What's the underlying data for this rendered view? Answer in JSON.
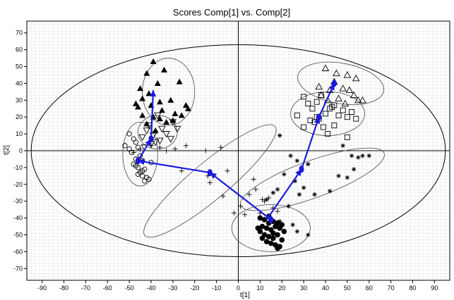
{
  "chart_data": {
    "type": "scatter",
    "title": "Scores Comp[1] vs. Comp[2]",
    "xlabel": "t[1]",
    "ylabel": "t[2]",
    "xlim": [
      -97,
      97
    ],
    "ylim": [
      -77,
      77
    ],
    "x_ticks": [
      -90,
      -80,
      -70,
      -60,
      -50,
      -40,
      -30,
      -20,
      -10,
      0,
      10,
      20,
      30,
      40,
      50,
      60,
      70,
      80,
      90
    ],
    "y_ticks": [
      70,
      60,
      50,
      40,
      30,
      20,
      10,
      0,
      -10,
      -20,
      -30,
      -40,
      -50,
      -60,
      -70
    ],
    "grid": true,
    "legend": "none",
    "colors": {
      "points": "#000000",
      "arrows": "#1a1adc",
      "ellipses": "#444444",
      "grid": "#d6d6d6"
    },
    "hotelling_ellipse": {
      "cx": 0,
      "cy": 0,
      "rx": 95,
      "ry": 63
    },
    "series": [
      {
        "marker": "filled-triangle",
        "x": [
          -39,
          -34,
          -27,
          -42,
          -45,
          -37,
          -44,
          -41,
          -47,
          -36,
          -31,
          -24,
          -46,
          -40,
          -35,
          -29,
          -23,
          -44,
          -39,
          -33,
          -26,
          -38,
          -30,
          -42,
          -36
        ],
        "y": [
          53,
          48,
          41,
          46,
          37,
          40,
          31,
          34,
          28,
          29,
          30,
          27,
          26,
          27,
          24,
          22,
          25,
          21,
          20,
          17,
          21,
          12,
          18,
          16,
          19
        ]
      },
      {
        "marker": "open-triangle-down",
        "x": [
          -37,
          -41,
          -30,
          -35,
          -42,
          -39,
          -33,
          -44,
          -36,
          -31,
          -40,
          -28,
          -43,
          -38
        ],
        "y": [
          21,
          15,
          17,
          13,
          12,
          9,
          10,
          8,
          6,
          7,
          4,
          13,
          2,
          5
        ]
      },
      {
        "marker": "open-circle",
        "x": [
          -50,
          -48,
          -52,
          -47,
          -50,
          -46,
          -49,
          -45,
          -47,
          -44,
          -48,
          -46,
          -43,
          -45,
          -44,
          -42,
          -43,
          -46,
          -41,
          -47,
          -44,
          -40
        ],
        "y": [
          10,
          7,
          3,
          5,
          1,
          2,
          -1,
          -3,
          -5,
          -6,
          -8,
          -10,
          -11,
          -13,
          -15,
          -16,
          -18,
          -14,
          -17,
          -9,
          -12,
          -7
        ]
      },
      {
        "marker": "plus",
        "x": [
          -48,
          -45,
          -40,
          -36,
          -33,
          -29,
          -24,
          -15,
          -8,
          -5,
          -14,
          -26,
          -13,
          -7,
          -2,
          3,
          7,
          5,
          11,
          12,
          16,
          18,
          1,
          8,
          10,
          14
        ],
        "y": [
          -1,
          1,
          3,
          2,
          0,
          1,
          3,
          0,
          2,
          -12,
          -15,
          -12,
          -19,
          -27,
          -37,
          -38,
          -17,
          -26,
          -29,
          -30,
          -34,
          -36,
          -33,
          -23,
          -37,
          -28
        ]
      },
      {
        "marker": "asterisk",
        "x": [
          19,
          24,
          27,
          29,
          32,
          21,
          26,
          18,
          30,
          35,
          48,
          52,
          55,
          57,
          60,
          53,
          46,
          19,
          25,
          27,
          32,
          13,
          16,
          23,
          42,
          50,
          28
        ],
        "y": [
          9,
          -3,
          -6,
          -10,
          -8,
          -14,
          -18,
          -23,
          -22,
          -26,
          3,
          -3,
          -4,
          -3,
          -3,
          -11,
          -15,
          -42,
          -44,
          -48,
          -50,
          -29,
          -25,
          -33,
          -24,
          -16,
          -26
        ]
      },
      {
        "marker": "open-triangle",
        "x": [
          40,
          45,
          50,
          54,
          57,
          44,
          48,
          51,
          55,
          53,
          38,
          42,
          46,
          49,
          37,
          41
        ],
        "y": [
          49,
          46,
          45,
          43,
          30,
          41,
          37,
          36,
          30,
          33,
          33,
          36,
          31,
          28,
          38,
          30
        ]
      },
      {
        "marker": "open-square",
        "x": [
          30,
          32,
          34,
          36,
          38,
          40,
          42,
          44,
          46,
          48,
          50,
          52,
          54,
          35,
          37,
          39,
          41,
          33,
          36,
          44,
          50,
          27,
          30,
          43
        ],
        "y": [
          32,
          28,
          25,
          29,
          33,
          22,
          25,
          27,
          21,
          24,
          20,
          23,
          19,
          17,
          19,
          14,
          10,
          18,
          20,
          15,
          8,
          21,
          14,
          26
        ]
      },
      {
        "marker": "filled-circle",
        "x": [
          10,
          12,
          14,
          16,
          18,
          20,
          11,
          13,
          15,
          17,
          19,
          21,
          10,
          12,
          14,
          16,
          18,
          20,
          13,
          15,
          17,
          19,
          11,
          16,
          18,
          14,
          9
        ],
        "y": [
          -40,
          -41,
          -39,
          -42,
          -43,
          -44,
          -45,
          -46,
          -47,
          -45,
          -46,
          -48,
          -48,
          -50,
          -51,
          -52,
          -50,
          -53,
          -54,
          -55,
          -56,
          -57,
          -52,
          -49,
          -58,
          -43,
          -46
        ]
      }
    ],
    "cluster_ellipses": [
      {
        "cx": -32,
        "cy": 35,
        "rx": 12,
        "ry": 20,
        "angle": 0
      },
      {
        "cx": -37,
        "cy": 11,
        "rx": 9,
        "ry": 10,
        "angle": 0
      },
      {
        "cx": -45,
        "cy": -2,
        "rx": 8,
        "ry": 19,
        "angle": 0
      },
      {
        "cx": -13,
        "cy": -18,
        "rx": 39,
        "ry": 11,
        "angle": 40
      },
      {
        "cx": 47,
        "cy": 40,
        "rx": 20,
        "ry": 12,
        "angle": -10
      },
      {
        "cx": 41,
        "cy": 22,
        "rx": 17,
        "ry": 13,
        "angle": 0
      },
      {
        "cx": 34,
        "cy": -17,
        "rx": 35,
        "ry": 11,
        "angle": 20
      },
      {
        "cx": 15,
        "cy": -46,
        "rx": 18,
        "ry": 14,
        "angle": 0
      }
    ],
    "trajectories": [
      {
        "from": [
          15,
          -41
        ],
        "to": [
          -13,
          -13
        ]
      },
      {
        "from": [
          -13,
          -13
        ],
        "to": [
          -46,
          -6
        ]
      },
      {
        "from": [
          -46,
          -6
        ],
        "to": [
          -40,
          7
        ]
      },
      {
        "from": [
          -40,
          7
        ],
        "to": [
          -39,
          36
        ]
      },
      {
        "from": [
          13,
          -41
        ],
        "to": [
          29,
          -11
        ]
      },
      {
        "from": [
          29,
          -11
        ],
        "to": [
          37,
          20
        ]
      },
      {
        "from": [
          37,
          20
        ],
        "to": [
          44,
          40
        ]
      }
    ],
    "trajectory_nodes": [
      {
        "x": 15,
        "y": -41
      },
      {
        "x": -13,
        "y": -13
      },
      {
        "x": -46,
        "y": -6
      },
      {
        "x": -40,
        "y": 7
      },
      {
        "x": 29,
        "y": -11
      },
      {
        "x": 37,
        "y": 20
      },
      {
        "x": 44,
        "y": 40
      }
    ]
  }
}
